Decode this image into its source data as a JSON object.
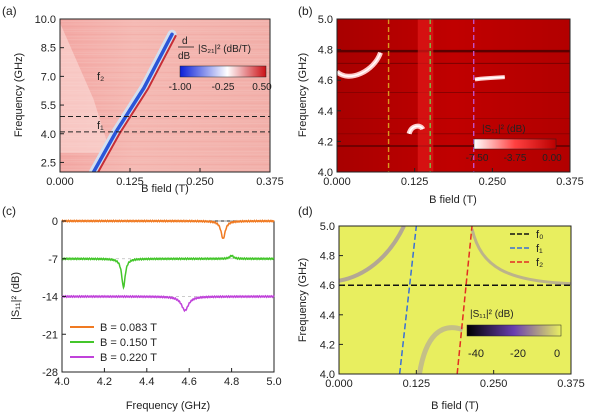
{
  "chart_data": [
    {
      "panel_label": "(a)",
      "type": "heatmap",
      "xlabel": "B field (T)",
      "ylabel": "Frequency (GHz)",
      "xlim": [
        0,
        0.375
      ],
      "ylim": [
        2.0,
        10.0
      ],
      "x_ticks": [
        "0.000",
        "0.125",
        "0.250",
        "0.375"
      ],
      "y_ticks": [
        "2.5",
        "4.0",
        "5.5",
        "7.0",
        "8.5",
        "10.0"
      ],
      "dashed_lines_y": [
        4.1,
        4.9
      ],
      "annotations": [
        "f₂",
        "f₁"
      ],
      "colorbar": {
        "label_top": "d",
        "label_bottom": "dB",
        "label_quantity": "|S₂₁|² (dB/T)",
        "ticks": [
          "-1.00",
          "-0.25",
          "0.50"
        ],
        "range": [
          -1.0,
          0.5
        ],
        "colors": [
          "#0a1fd8",
          "#ffffff",
          "#cc1016"
        ]
      },
      "features": [
        {
          "name": "diagonal",
          "points": [
            [
              0.06,
              2.0
            ],
            [
              0.1,
              4.1
            ],
            [
              0.15,
              6.4
            ],
            [
              0.2,
              9.2
            ]
          ]
        }
      ]
    },
    {
      "panel_label": "(b)",
      "type": "heatmap",
      "xlabel": "B field (T)",
      "ylabel": "Frequency (GHz)",
      "xlim": [
        0,
        0.375
      ],
      "ylim": [
        4.0,
        5.0
      ],
      "x_ticks": [
        "0.000",
        "0.125",
        "0.250",
        "0.375"
      ],
      "y_ticks": [
        "4.0",
        "4.2",
        "4.4",
        "4.6",
        "4.8",
        "5.0"
      ],
      "vertical_lines": [
        {
          "x": 0.083,
          "color": "#d99a20"
        },
        {
          "x": 0.15,
          "color": "#7bc043"
        },
        {
          "x": 0.22,
          "color": "#c14fc6"
        }
      ],
      "colorbar": {
        "label_quantity": "|S₁₁|² (dB)",
        "ticks": [
          "-7.50",
          "-3.75",
          "0.00"
        ],
        "range": [
          -7.5,
          0.0
        ],
        "colors": [
          "#ffffff",
          "#ff4040",
          "#bb0000"
        ]
      }
    },
    {
      "panel_label": "(c)",
      "type": "line",
      "xlabel": "Frequency (GHz)",
      "ylabel": "|S₁₁|² (dB)",
      "xlim": [
        4.0,
        5.0
      ],
      "ylim": [
        -28,
        0
      ],
      "x_ticks": [
        "4.0",
        "4.2",
        "4.4",
        "4.6",
        "4.8",
        "5.0"
      ],
      "y_ticks": [
        "0",
        "-7",
        "-14",
        "-21",
        "-28"
      ],
      "series": [
        {
          "name": "B = 0.083 T",
          "color": "#f07a22",
          "offset": 0,
          "dips": [
            {
              "x": 4.76,
              "depth": 3.3,
              "width": 0.012
            }
          ]
        },
        {
          "name": "B = 0.150 T",
          "color": "#44c62b",
          "offset": -7,
          "dips": [
            {
              "x": 4.29,
              "depth": 5.3,
              "width": 0.01
            },
            {
              "x": 4.8,
              "depth": -0.6,
              "width": 0.01
            }
          ]
        },
        {
          "name": "B = 0.220 T",
          "color": "#c043da",
          "offset": -14,
          "dips": [
            {
              "x": 4.58,
              "depth": 2.6,
              "width": 0.02
            }
          ]
        }
      ]
    },
    {
      "panel_label": "(d)",
      "type": "heatmap",
      "xlabel": "B field (T)",
      "ylabel": "Frequency (GHz)",
      "xlim": [
        0,
        0.375
      ],
      "ylim": [
        4.0,
        5.0
      ],
      "x_ticks": [
        "0.000",
        "0.125",
        "0.250",
        "0.375"
      ],
      "y_ticks": [
        "4.0",
        "4.2",
        "4.4",
        "4.6",
        "4.8",
        "5.0"
      ],
      "legend": [
        {
          "label": "f₀",
          "color": "#111111"
        },
        {
          "label": "f₁",
          "color": "#3a6fd6"
        },
        {
          "label": "f₂",
          "color": "#e22d23"
        }
      ],
      "f0": 4.6,
      "f1_line": [
        [
          0.098,
          4.0
        ],
        [
          0.125,
          5.0
        ]
      ],
      "f2_line": [
        [
          0.191,
          4.0
        ],
        [
          0.215,
          5.0
        ]
      ],
      "colorbar": {
        "label_quantity": "|S₁₁|² (dB)",
        "ticks": [
          "-40",
          "-20",
          "0"
        ],
        "range": [
          -40,
          0
        ],
        "colors": [
          "#000000",
          "#6a3fb0",
          "#e9ef62"
        ]
      }
    }
  ]
}
